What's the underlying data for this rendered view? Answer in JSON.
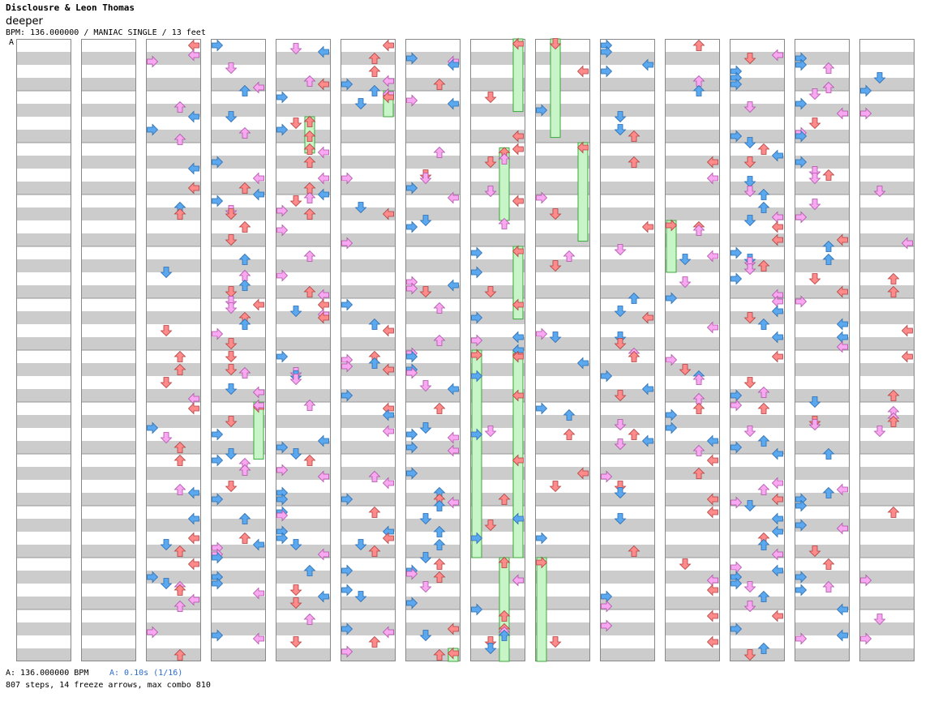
{
  "song": {
    "title": "Disclousre & Leon Thomas",
    "subtitle": "deeper",
    "info": "BPM: 136.000000 / MANIAC SINGLE / 13 feet",
    "marker": "A"
  },
  "footer": {
    "bpm": "A: 136.000000 BPM",
    "speed": "A: 0.10s (1/16)",
    "stats": "807 steps, 14 freeze arrows, max combo 810"
  },
  "colors": {
    "left": "#5aa9f0",
    "down": "#ff8a8a",
    "up": "#ff8a8a",
    "right": "#ff8a8a",
    "eighth": "#5aa9f0",
    "sixteenth": "#f7a8f0",
    "freeze": "#c8f5c8",
    "freeze_border": "#3aa83a",
    "stripe": "#cccccc"
  },
  "chart_data": {
    "type": "step_chart",
    "columns": 14,
    "measures_per_column": 12,
    "lanes": [
      "left",
      "down",
      "up",
      "right"
    ],
    "total_steps": 807,
    "freeze_arrows": 14,
    "max_combo": 810,
    "bpm": 136.0,
    "difficulty": "MANIAC SINGLE",
    "feet": 13,
    "seed": 7,
    "density": [
      0,
      0,
      0.32,
      0.45,
      0.36,
      0.38,
      0.48,
      0.3,
      0.16,
      0.24,
      0.28,
      0.6,
      0.38,
      0.16
    ],
    "freezes": [
      {
        "column": 3,
        "lane": "right",
        "from": 7.0,
        "to": 8.1
      },
      {
        "column": 4,
        "lane": "up",
        "from": 1.5,
        "to": 2.2
      },
      {
        "column": 5,
        "lane": "right",
        "from": 1.0,
        "to": 1.5
      },
      {
        "column": 6,
        "lane": "right",
        "from": 11.75,
        "to": 12.0
      },
      {
        "column": 7,
        "lane": "right",
        "from": 0.0,
        "to": 1.4
      },
      {
        "column": 7,
        "lane": "up",
        "from": 2.1,
        "to": 3.5
      },
      {
        "column": 7,
        "lane": "right",
        "from": 4.0,
        "to": 5.4
      },
      {
        "column": 7,
        "lane": "left",
        "from": 6.0,
        "to": 10.0
      },
      {
        "column": 7,
        "lane": "right",
        "from": 6.0,
        "to": 10.0
      },
      {
        "column": 7,
        "lane": "up",
        "from": 10.0,
        "to": 12.0
      },
      {
        "column": 8,
        "lane": "down",
        "from": 0.0,
        "to": 1.9
      },
      {
        "column": 8,
        "lane": "right",
        "from": 2.0,
        "to": 3.9
      },
      {
        "column": 8,
        "lane": "left",
        "from": 10.0,
        "to": 12.0
      },
      {
        "column": 10,
        "lane": "left",
        "from": 3.5,
        "to": 4.5
      }
    ]
  }
}
